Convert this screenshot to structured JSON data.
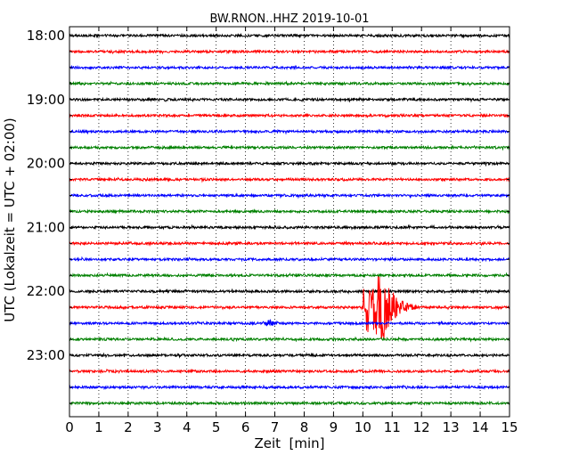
{
  "chart_data": {
    "type": "line",
    "title": "BW.RNON..HHZ 2019-10-01",
    "xlabel": "Zeit  [min]",
    "ylabel": "UTC (Lokalzeit = UTC + 02:00)",
    "xlim": [
      0,
      15
    ],
    "x_ticks": [
      "0",
      "1",
      "2",
      "3",
      "4",
      "5",
      "6",
      "7",
      "8",
      "9",
      "10",
      "11",
      "12",
      "13",
      "14",
      "15"
    ],
    "y_tick_labels": [
      "18:00",
      "19:00",
      "20:00",
      "21:00",
      "22:00",
      "23:00"
    ],
    "grid": "vertical dotted",
    "series_colors": [
      "#000000",
      "#ff0000",
      "#0000ff",
      "#008000"
    ],
    "traces": [
      {
        "start": "18:00",
        "color": "#000000"
      },
      {
        "start": "18:15",
        "color": "#ff0000"
      },
      {
        "start": "18:30",
        "color": "#0000ff"
      },
      {
        "start": "18:45",
        "color": "#008000"
      },
      {
        "start": "19:00",
        "color": "#000000"
      },
      {
        "start": "19:15",
        "color": "#ff0000"
      },
      {
        "start": "19:30",
        "color": "#0000ff"
      },
      {
        "start": "19:45",
        "color": "#008000"
      },
      {
        "start": "20:00",
        "color": "#000000"
      },
      {
        "start": "20:15",
        "color": "#ff0000"
      },
      {
        "start": "20:30",
        "color": "#0000ff"
      },
      {
        "start": "20:45",
        "color": "#008000"
      },
      {
        "start": "21:00",
        "color": "#000000"
      },
      {
        "start": "21:15",
        "color": "#ff0000"
      },
      {
        "start": "21:30",
        "color": "#0000ff"
      },
      {
        "start": "21:45",
        "color": "#008000"
      },
      {
        "start": "22:00",
        "color": "#000000"
      },
      {
        "start": "22:15",
        "color": "#ff0000",
        "event": {
          "onset_min": 10.0,
          "peak_min": 10.7,
          "end_min": 12.6
        }
      },
      {
        "start": "22:30",
        "color": "#0000ff",
        "event": {
          "onset_min": 6.6,
          "peak_min": 6.8,
          "end_min": 7.6
        }
      },
      {
        "start": "22:45",
        "color": "#008000"
      },
      {
        "start": "23:00",
        "color": "#000000"
      },
      {
        "start": "23:15",
        "color": "#ff0000"
      },
      {
        "start": "23:30",
        "color": "#0000ff"
      },
      {
        "start": "23:45",
        "color": "#008000"
      }
    ]
  }
}
